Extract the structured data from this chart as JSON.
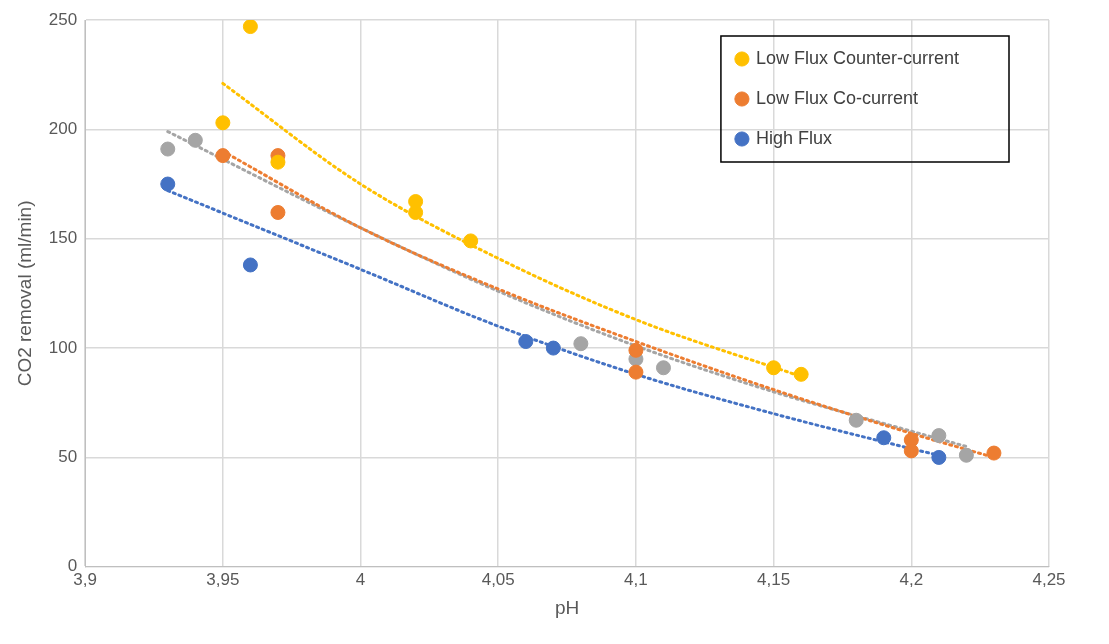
{
  "chart_data": {
    "type": "scatter",
    "xlabel": "pH",
    "ylabel": "CO2 removal (ml/min)",
    "xlim": [
      3.9,
      4.25
    ],
    "ylim": [
      0,
      250
    ],
    "xticks": [
      {
        "value": 3.9,
        "label": "3,9"
      },
      {
        "value": 3.95,
        "label": "3,95"
      },
      {
        "value": 4,
        "label": "4"
      },
      {
        "value": 4.05,
        "label": "4,05"
      },
      {
        "value": 4.1,
        "label": "4,1"
      },
      {
        "value": 4.15,
        "label": "4,15"
      },
      {
        "value": 4.2,
        "label": "4,2"
      },
      {
        "value": 4.25,
        "label": "4,25"
      }
    ],
    "yticks": [
      0,
      50,
      100,
      150,
      200,
      250
    ],
    "grid": true,
    "legend": "top right",
    "marker": "circle",
    "series": [
      {
        "name": "Low Flux Counter-current",
        "color": "#ffc000",
        "x": [
          3.96,
          3.95,
          3.97,
          4.02,
          4.02,
          4.04,
          4.15,
          4.16
        ],
        "values": [
          247,
          203,
          185,
          167,
          162,
          149,
          91,
          88
        ]
      },
      {
        "name": "Low Flux Co-current",
        "color": "#ed7d31",
        "x": [
          3.95,
          3.97,
          3.97,
          4.1,
          4.1,
          4.2,
          4.2,
          4.23
        ],
        "values": [
          188,
          188,
          162,
          99,
          89,
          58,
          53,
          52
        ]
      },
      {
        "color": "#a5a5a5",
        "x": [
          3.93,
          3.94,
          4.08,
          4.1,
          4.11,
          4.18,
          4.21,
          4.22
        ],
        "values": [
          191,
          195,
          102,
          95,
          91,
          67,
          60,
          51
        ]
      },
      {
        "name": "High Flux",
        "color": "#4472c4",
        "x": [
          3.93,
          3.96,
          4.06,
          4.07,
          4.19,
          4.21
        ],
        "values": [
          175,
          138,
          103,
          100,
          59,
          50
        ]
      },
      {
        "type": "line",
        "marker": "none",
        "line_style": "dotted",
        "color": "#ffc000",
        "x": [
          3.95,
          4,
          4.05,
          4.1,
          4.16
        ],
        "values": [
          221,
          175,
          141,
          113,
          87
        ]
      },
      {
        "type": "line",
        "marker": "none",
        "line_style": "dotted",
        "color": "#ed7d31",
        "x": [
          3.95,
          4,
          4.05,
          4.1,
          4.15,
          4.2,
          4.23
        ],
        "values": [
          190,
          155,
          127,
          103,
          81,
          61,
          50
        ]
      },
      {
        "type": "line",
        "marker": "none",
        "line_style": "dotted",
        "color": "#a5a5a5",
        "x": [
          3.93,
          4,
          4.05,
          4.1,
          4.15,
          4.2,
          4.22
        ],
        "values": [
          199,
          155,
          126,
          101,
          80,
          62,
          55
        ]
      },
      {
        "type": "line",
        "marker": "none",
        "line_style": "dotted",
        "color": "#4472c4",
        "x": [
          3.93,
          4,
          4.05,
          4.1,
          4.15,
          4.2,
          4.21
        ],
        "values": [
          172,
          136,
          110,
          88,
          70,
          54,
          51
        ]
      }
    ]
  }
}
